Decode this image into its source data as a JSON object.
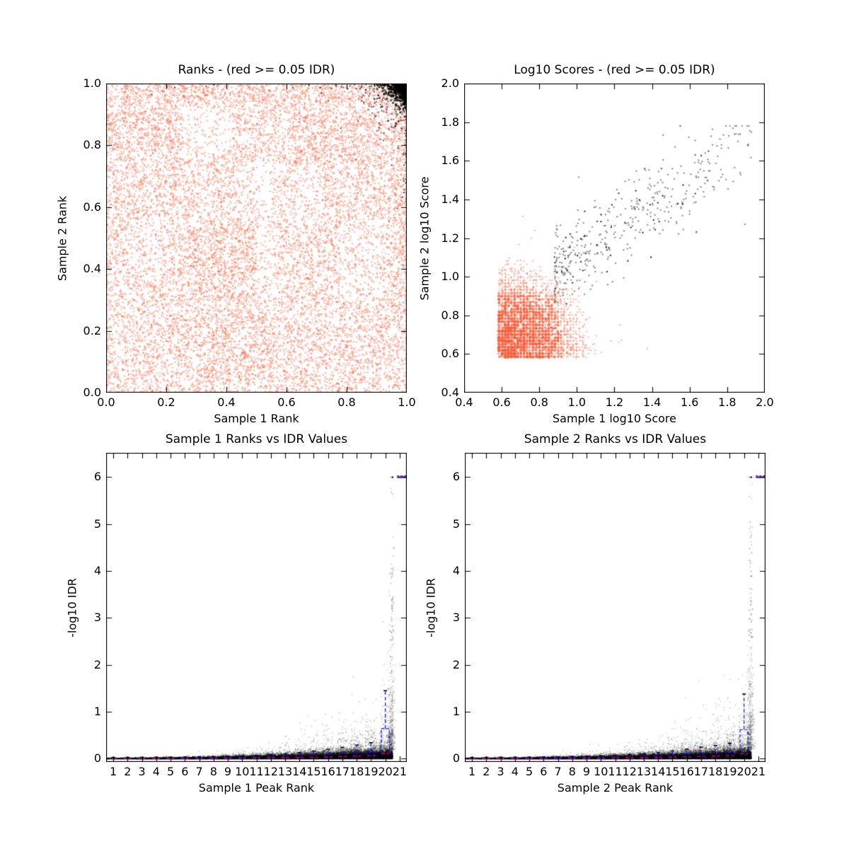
{
  "figure": {
    "background": "#FFFFFF",
    "kind": "IDR quality-control figure, 2x2 subplots",
    "grid": "off",
    "legend": "none"
  },
  "colors": {
    "nonsignificant_salmon": "#FA6044",
    "significant_black": "#000000",
    "significant_gray": "#4A4A4A",
    "box_blue": "#0A0AEE",
    "median_red": "#FF0000",
    "whisker_cap_black": "#000000",
    "rank21_line_maroon": "#6E0F26",
    "axis_black": "#000000"
  },
  "chart_data": [
    {
      "id": "ranks",
      "type": "scatter",
      "title": "Ranks - (red >= 0.05 IDR)",
      "xlabel": "Sample 1 Rank",
      "ylabel": "Sample 2 Rank",
      "xlim": [
        0.0,
        1.0
      ],
      "ylim": [
        0.0,
        1.0
      ],
      "xticks": [
        0.0,
        0.2,
        0.4,
        0.6,
        0.8,
        1.0
      ],
      "yticks": [
        0.0,
        0.2,
        0.4,
        0.6,
        0.8,
        1.0
      ],
      "xtick_labels": [
        "0.0",
        "0.2",
        "0.4",
        "0.6",
        "0.8",
        "1.0"
      ],
      "ytick_labels": [
        "0.0",
        "0.2",
        "0.4",
        "0.6",
        "0.8",
        "1.0"
      ],
      "series": [
        {
          "name": "IDR >= 0.05",
          "color": "#FA6044",
          "marker": "small dot",
          "description": "very dense semi-transparent salmon scatter covering the whole unit square with patchy banded density"
        },
        {
          "name": "IDR < 0.05",
          "color": "#000000",
          "marker": "small dot",
          "description": "dense black cluster hugging the top-right corner near rank (1.0, 1.0), fading away from the corner"
        }
      ]
    },
    {
      "id": "scores",
      "type": "scatter",
      "title": "Log10 Scores - (red >= 0.05 IDR)",
      "xlabel": "Sample 1 log10 Score",
      "ylabel": "Sample 2 log10 Score",
      "xlim": [
        0.4,
        2.0
      ],
      "ylim": [
        0.4,
        2.0
      ],
      "xticks": [
        0.4,
        0.6,
        0.8,
        1.0,
        1.2,
        1.4,
        1.6,
        1.8,
        2.0
      ],
      "yticks": [
        0.4,
        0.6,
        0.8,
        1.0,
        1.2,
        1.4,
        1.6,
        1.8,
        2.0
      ],
      "xtick_labels": [
        "0.4",
        "0.6",
        "0.8",
        "1.0",
        "1.2",
        "1.4",
        "1.6",
        "1.8",
        "2.0"
      ],
      "ytick_labels": [
        "0.4",
        "0.6",
        "0.8",
        "1.0",
        "1.2",
        "1.4",
        "1.6",
        "1.8",
        "2.0"
      ],
      "series": [
        {
          "name": "IDR >= 0.05",
          "color": "#FA6044",
          "x_range": [
            0.58,
            1.42
          ],
          "y_range": [
            0.58,
            1.42
          ],
          "description": "grid-aligned dense salmon cluster, densest below (0.9, 0.9), sparse tail to ~1.4"
        },
        {
          "name": "IDR < 0.05",
          "color": "#4A4A4A",
          "x_range": [
            0.85,
            1.95
          ],
          "y_range": [
            0.85,
            1.8
          ],
          "n_approx": 400,
          "description": "loose positively-correlated gray/black scatter extending to the upper right"
        }
      ],
      "notable_points": [
        [
          1.55,
          1.78
        ],
        [
          1.91,
          1.68
        ],
        [
          1.63,
          1.63
        ],
        [
          1.45,
          1.56
        ],
        [
          1.36,
          1.56
        ],
        [
          1.7,
          1.65
        ]
      ]
    },
    {
      "id": "idr1",
      "type": "scatter+boxplot",
      "title": "Sample 1 Ranks vs IDR Values",
      "xlabel": "Sample 1 Peak Rank",
      "ylabel": "-log10 IDR",
      "xlim": [
        0.5,
        21.5
      ],
      "ylim": [
        -0.07,
        6.52
      ],
      "xticks": [
        1,
        2,
        3,
        4,
        5,
        6,
        7,
        8,
        9,
        10,
        11,
        12,
        13,
        14,
        15,
        16,
        17,
        18,
        19,
        20,
        21
      ],
      "yticks": [
        0,
        1,
        2,
        3,
        4,
        5,
        6
      ],
      "xtick_labels": [
        "1",
        "2",
        "3",
        "4",
        "5",
        "6",
        "7",
        "8",
        "9",
        "10",
        "11",
        "12",
        "13",
        "14",
        "15",
        "16",
        "17",
        "18",
        "19",
        "20",
        "21"
      ],
      "ytick_labels": [
        "0",
        "1",
        "2",
        "3",
        "4",
        "5",
        "6"
      ],
      "scatter_description": "black wedge of -log10 IDR values hugging 0, thickening with rank; gray tail rising with rank; tall sparse column at rank 20 reaching 6; single black point at (20.5, 6)",
      "max_neglog10_idr": 6,
      "boxes_ranks": [
        1,
        2,
        3,
        4,
        5,
        6,
        7,
        8,
        9,
        10,
        11,
        12,
        13,
        14,
        15,
        16,
        17,
        18,
        19,
        20
      ],
      "boxes": [
        [
          0.001,
          0.008,
          0.017,
          0.027
        ],
        [
          0.001,
          0.008,
          0.018,
          0.028
        ],
        [
          0.001,
          0.009,
          0.019,
          0.03
        ],
        [
          0.001,
          0.009,
          0.02,
          0.032
        ],
        [
          0.002,
          0.01,
          0.021,
          0.034
        ],
        [
          0.002,
          0.01,
          0.023,
          0.037
        ],
        [
          0.002,
          0.011,
          0.025,
          0.041
        ],
        [
          0.002,
          0.012,
          0.027,
          0.046
        ],
        [
          0.003,
          0.013,
          0.03,
          0.052
        ],
        [
          0.003,
          0.015,
          0.034,
          0.06
        ],
        [
          0.004,
          0.017,
          0.039,
          0.072
        ],
        [
          0.005,
          0.02,
          0.045,
          0.087
        ],
        [
          0.006,
          0.024,
          0.053,
          0.105
        ],
        [
          0.008,
          0.028,
          0.063,
          0.13
        ],
        [
          0.01,
          0.034,
          0.075,
          0.16
        ],
        [
          0.013,
          0.04,
          0.09,
          0.2
        ],
        [
          0.016,
          0.048,
          0.107,
          0.24
        ],
        [
          0.02,
          0.057,
          0.127,
          0.29
        ],
        [
          0.024,
          0.067,
          0.148,
          0.34
        ],
        [
          0.08,
          0.115,
          0.64,
          1.45
        ]
      ],
      "rank21_line_y": 6,
      "extreme_point": [
        20.5,
        6
      ]
    },
    {
      "id": "idr2",
      "type": "scatter+boxplot",
      "title": "Sample 2 Ranks vs IDR Values",
      "xlabel": "Sample 2 Peak Rank",
      "ylabel": "-log10 IDR",
      "xlim": [
        0.5,
        21.5
      ],
      "ylim": [
        -0.07,
        6.52
      ],
      "xticks": [
        1,
        2,
        3,
        4,
        5,
        6,
        7,
        8,
        9,
        10,
        11,
        12,
        13,
        14,
        15,
        16,
        17,
        18,
        19,
        20,
        21
      ],
      "yticks": [
        0,
        1,
        2,
        3,
        4,
        5,
        6
      ],
      "xtick_labels": [
        "1",
        "2",
        "3",
        "4",
        "5",
        "6",
        "7",
        "8",
        "9",
        "10",
        "11",
        "12",
        "13",
        "14",
        "15",
        "16",
        "17",
        "18",
        "19",
        "20",
        "21"
      ],
      "ytick_labels": [
        "0",
        "1",
        "2",
        "3",
        "4",
        "5",
        "6"
      ],
      "scatter_description": "black wedge of -log10 IDR values hugging 0, thickening with rank; gray tail rising with rank; tall sparse column at rank 20 reaching 6; single black point at (20.5, 6)",
      "max_neglog10_idr": 6,
      "boxes_ranks": [
        1,
        2,
        3,
        4,
        5,
        6,
        7,
        8,
        9,
        10,
        11,
        12,
        13,
        14,
        15,
        16,
        17,
        18,
        19,
        20
      ],
      "boxes": [
        [
          0.001,
          0.008,
          0.017,
          0.027
        ],
        [
          0.001,
          0.009,
          0.018,
          0.029
        ],
        [
          0.001,
          0.009,
          0.019,
          0.03
        ],
        [
          0.001,
          0.01,
          0.02,
          0.033
        ],
        [
          0.002,
          0.01,
          0.022,
          0.035
        ],
        [
          0.002,
          0.011,
          0.023,
          0.038
        ],
        [
          0.002,
          0.011,
          0.025,
          0.042
        ],
        [
          0.002,
          0.012,
          0.028,
          0.047
        ],
        [
          0.003,
          0.014,
          0.031,
          0.054
        ],
        [
          0.003,
          0.015,
          0.035,
          0.062
        ],
        [
          0.004,
          0.018,
          0.04,
          0.074
        ],
        [
          0.005,
          0.021,
          0.046,
          0.09
        ],
        [
          0.006,
          0.024,
          0.054,
          0.108
        ],
        [
          0.008,
          0.029,
          0.064,
          0.133
        ],
        [
          0.01,
          0.035,
          0.077,
          0.165
        ],
        [
          0.013,
          0.041,
          0.092,
          0.205
        ],
        [
          0.016,
          0.049,
          0.109,
          0.245
        ],
        [
          0.02,
          0.058,
          0.13,
          0.28
        ],
        [
          0.024,
          0.068,
          0.15,
          0.33
        ],
        [
          0.075,
          0.105,
          0.62,
          1.38
        ]
      ],
      "rank21_line_y": 6,
      "extreme_point": [
        20.5,
        6
      ]
    }
  ]
}
